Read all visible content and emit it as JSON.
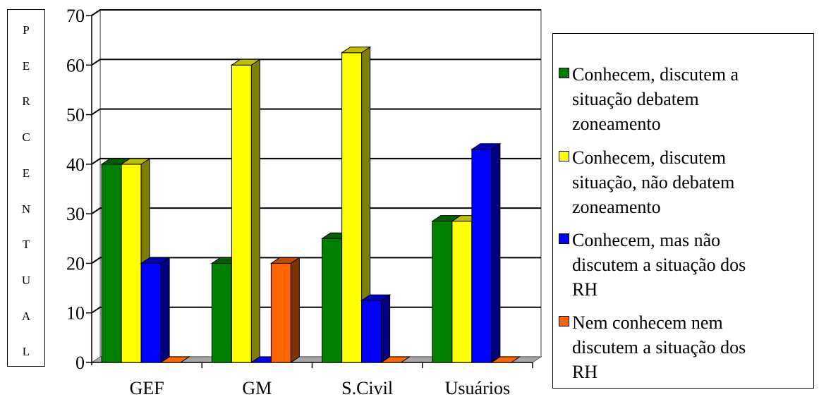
{
  "chart_data": {
    "type": "bar",
    "ylabel_letters": [
      "P",
      "E",
      "R",
      "C",
      "E",
      "N",
      "T",
      "U",
      "A",
      "L"
    ],
    "categories": [
      "GEF",
      "GM",
      "S.Civil",
      "Usuários"
    ],
    "ylim": [
      0,
      70
    ],
    "yticks": [
      0,
      10,
      20,
      30,
      40,
      50,
      60,
      70
    ],
    "grid": true,
    "legend_position": "right",
    "series": [
      {
        "name": "Conhecem, discutem a\nsituação debatem\nzoneamento",
        "color": "#008000",
        "values": [
          40,
          20,
          25,
          28.5
        ]
      },
      {
        "name": "Conhecem, discutem\nsituação, não debatem\nzoneamento",
        "color": "#ffff00",
        "values": [
          40,
          60,
          62.5,
          28.5
        ]
      },
      {
        "name": "Conhecem, mas não\ndiscutem a situação dos\nRH",
        "color": "#0000ff",
        "values": [
          20,
          0,
          12.5,
          43
        ]
      },
      {
        "name": "Nem conhecem nem\ndiscutem a situação dos\nRH",
        "color": "#ff6600",
        "values": [
          0,
          20,
          0,
          0
        ]
      }
    ]
  }
}
